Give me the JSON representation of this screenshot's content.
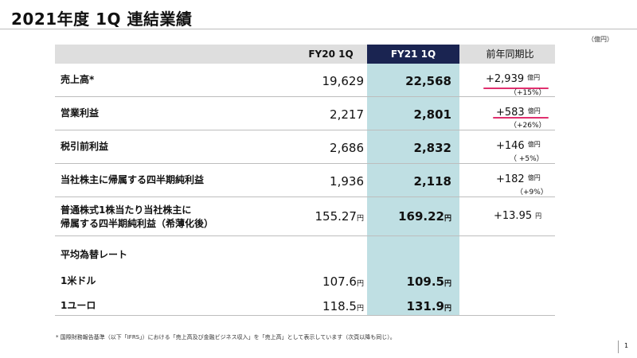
{
  "title": "2021年度 1Q 連結業績",
  "unit": "（億円）",
  "headers": {
    "fy20": "FY20 1Q",
    "fy21": "FY21 1Q",
    "yoy": "前年同期比"
  },
  "rows": [
    {
      "label": "売上高*",
      "fy20": "19,629",
      "fy21": "22,568",
      "yoy": "+2,939",
      "yoy_unit": "億円",
      "yoy_pct": "（+15%）"
    },
    {
      "label": "営業利益",
      "fy20": "2,217",
      "fy21": "2,801",
      "yoy": "+583",
      "yoy_unit": "億円",
      "yoy_pct": "（+26%）"
    },
    {
      "label": "税引前利益",
      "fy20": "2,686",
      "fy21": "2,832",
      "yoy": "+146",
      "yoy_unit": "億円",
      "yoy_pct": "（ +5%）"
    },
    {
      "label": "当社株主に帰属する四半期純利益",
      "fy20": "1,936",
      "fy21": "2,118",
      "yoy": "+182",
      "yoy_unit": "億円",
      "yoy_pct": "（+9%）"
    },
    {
      "label_line1": "普通株式1株当たり当社株主に",
      "label_line2": "帰属する四半期純利益（希薄化後）",
      "fy20": "155.27",
      "fy21": "169.22",
      "yoy": "+13.95",
      "yen": "円"
    }
  ],
  "fx": {
    "heading": "平均為替レート",
    "rows": [
      {
        "label": "1米ドル",
        "fy20": "107.6",
        "fy21": "109.5",
        "yen": "円"
      },
      {
        "label": "1ユーロ",
        "fy20": "118.5",
        "fy21": "131.9",
        "yen": "円"
      }
    ]
  },
  "highlight_color": "#e0306e",
  "footnote": "* 国際財務報告基準（以下「IFRS」）における「売上高及び金融ビジネス収入」を「売上高」として表示しています（次頁以降も同じ）。",
  "page_number": "1"
}
